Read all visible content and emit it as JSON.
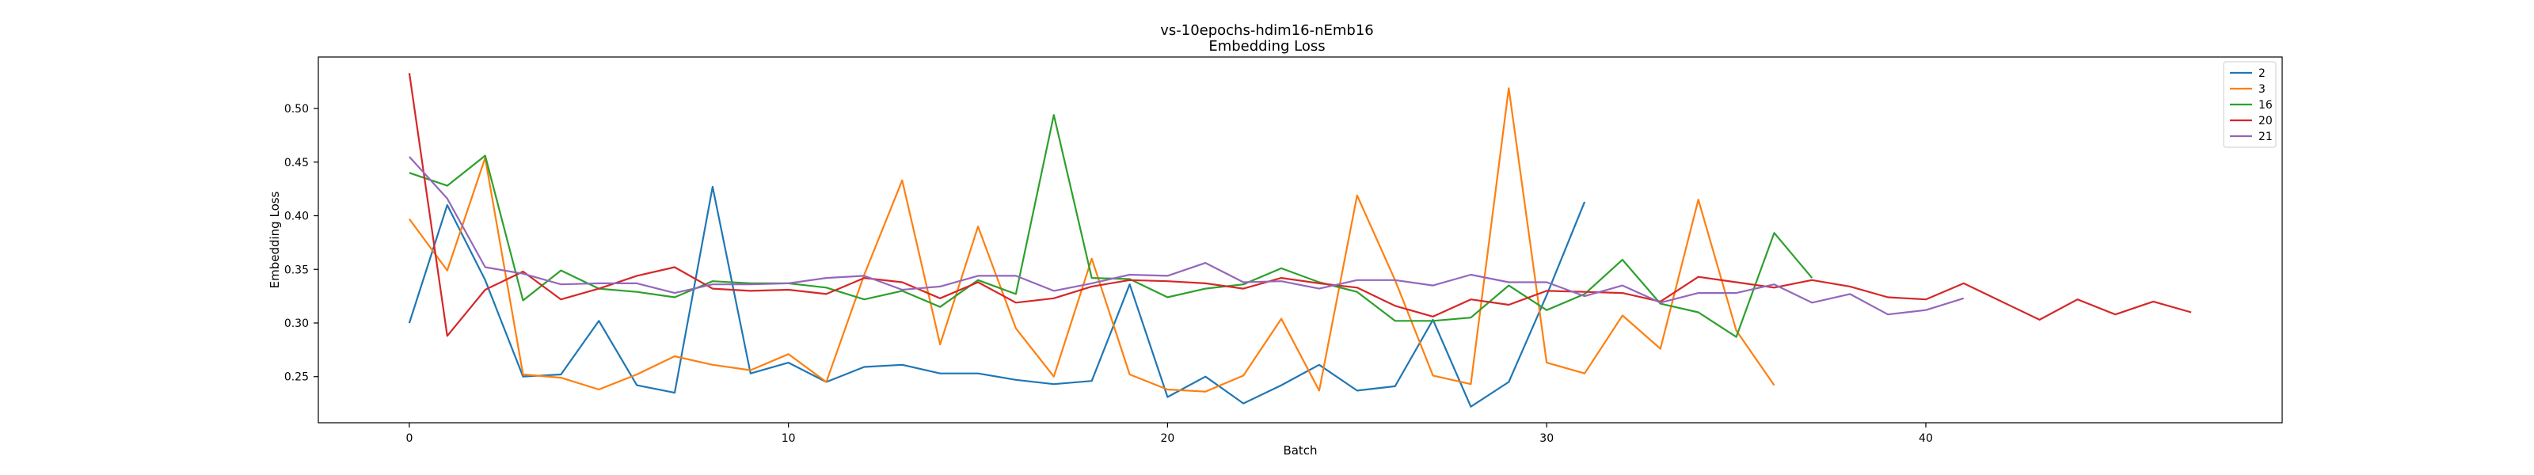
{
  "chart_data": {
    "type": "line",
    "title": "vs-10epochs-hdim16-nEmb16",
    "subtitle": "Embedding Loss",
    "xlabel": "Batch",
    "ylabel": "Embedding Loss",
    "xlim": [
      -2.4,
      49.4
    ],
    "ylim": [
      0.207,
      0.548
    ],
    "xticks": [
      0,
      10,
      20,
      30,
      40
    ],
    "yticks": [
      0.25,
      0.3,
      0.35,
      0.4,
      0.45,
      0.5
    ],
    "ytick_labels": [
      "0.25",
      "0.30",
      "0.35",
      "0.40",
      "0.45",
      "0.50"
    ],
    "grid": false,
    "legend": "top-right",
    "series": [
      {
        "name": "2",
        "color": "#1f77b4",
        "values": [
          0.3,
          0.41,
          0.34,
          0.25,
          0.252,
          0.302,
          0.242,
          0.235,
          0.427,
          0.253,
          0.263,
          0.245,
          0.259,
          0.261,
          0.253,
          0.253,
          0.247,
          0.243,
          0.246,
          0.336,
          0.231,
          0.25,
          0.225,
          0.242,
          0.261,
          0.237,
          0.241,
          0.303,
          0.222,
          0.245,
          0.326,
          0.413
        ]
      },
      {
        "name": "3",
        "color": "#ff7f0e",
        "values": [
          0.397,
          0.349,
          0.454,
          0.252,
          0.249,
          0.238,
          0.252,
          0.269,
          0.261,
          0.256,
          0.271,
          0.245,
          0.345,
          0.433,
          0.28,
          0.39,
          0.295,
          0.25,
          0.36,
          0.252,
          0.238,
          0.236,
          0.251,
          0.304,
          0.237,
          0.419,
          0.34,
          0.251,
          0.243,
          0.519,
          0.263,
          0.253,
          0.307,
          0.276,
          0.415,
          0.293,
          0.242
        ]
      },
      {
        "name": "16",
        "color": "#2ca02c",
        "values": [
          0.44,
          0.428,
          0.456,
          0.321,
          0.349,
          0.332,
          0.329,
          0.324,
          0.339,
          0.337,
          0.337,
          0.333,
          0.322,
          0.33,
          0.315,
          0.34,
          0.327,
          0.494,
          0.342,
          0.341,
          0.324,
          0.332,
          0.336,
          0.351,
          0.338,
          0.329,
          0.302,
          0.302,
          0.305,
          0.335,
          0.312,
          0.327,
          0.359,
          0.318,
          0.31,
          0.287,
          0.384,
          0.342
        ]
      },
      {
        "name": "20",
        "color": "#d62728",
        "values": [
          0.533,
          0.288,
          0.331,
          0.348,
          0.322,
          0.332,
          0.344,
          0.352,
          0.332,
          0.33,
          0.331,
          0.327,
          0.342,
          0.338,
          0.323,
          0.338,
          0.319,
          0.323,
          0.334,
          0.34,
          0.339,
          0.337,
          0.332,
          0.342,
          0.337,
          0.333,
          0.316,
          0.306,
          0.322,
          0.317,
          0.33,
          0.329,
          0.328,
          0.32,
          0.343,
          0.338,
          0.333,
          0.34,
          0.334,
          0.324,
          0.322,
          0.337,
          0.32,
          0.303,
          0.322,
          0.308,
          0.32,
          0.31
        ]
      },
      {
        "name": "21",
        "color": "#9467bd",
        "values": [
          0.455,
          0.416,
          0.352,
          0.346,
          0.336,
          0.337,
          0.337,
          0.328,
          0.336,
          0.336,
          0.337,
          0.342,
          0.344,
          0.331,
          0.334,
          0.344,
          0.344,
          0.33,
          0.337,
          0.345,
          0.344,
          0.356,
          0.338,
          0.339,
          0.332,
          0.34,
          0.34,
          0.335,
          0.345,
          0.338,
          0.338,
          0.325,
          0.335,
          0.319,
          0.328,
          0.328,
          0.336,
          0.319,
          0.327,
          0.308,
          0.312,
          0.323
        ]
      }
    ]
  }
}
